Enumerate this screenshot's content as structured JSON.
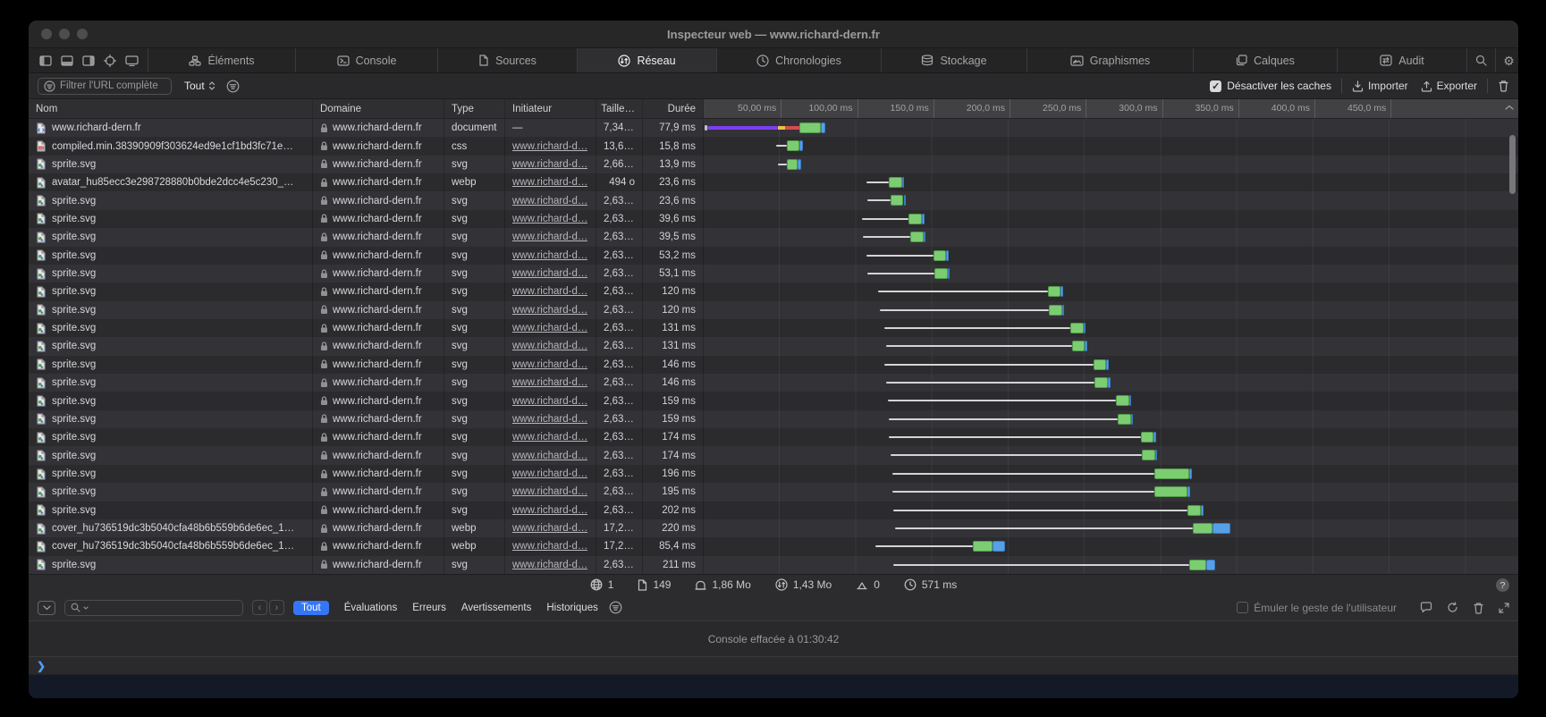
{
  "window": {
    "title": "Inspecteur web — www.richard-dern.fr"
  },
  "tabbar": {
    "dock_icons": [
      "dock-left-icon",
      "dock-bottom-icon",
      "dock-right-icon",
      "inspect-target-icon",
      "device-icon"
    ],
    "tabs": [
      {
        "label": "Éléments",
        "icon": "elements-icon",
        "selected": false
      },
      {
        "label": "Console",
        "icon": "console-icon",
        "selected": false
      },
      {
        "label": "Sources",
        "icon": "sources-icon",
        "selected": false
      },
      {
        "label": "Réseau",
        "icon": "network-icon",
        "selected": true
      },
      {
        "label": "Chronologies",
        "icon": "timelines-icon",
        "selected": false
      },
      {
        "label": "Stockage",
        "icon": "storage-icon",
        "selected": false
      },
      {
        "label": "Graphismes",
        "icon": "graphics-icon",
        "selected": false
      },
      {
        "label": "Calques",
        "icon": "layers-icon",
        "selected": false
      },
      {
        "label": "Audit",
        "icon": "audit-icon",
        "selected": false
      }
    ]
  },
  "nettools": {
    "filter_placeholder": "Filtrer l'URL complète",
    "scope_value": "Tout",
    "disable_caches_label": "Désactiver les caches",
    "disable_caches_checked": true,
    "import_label": "Importer",
    "export_label": "Exporter"
  },
  "table": {
    "columns": [
      "Nom",
      "Domaine",
      "Type",
      "Initiateur",
      "Taille…",
      "Durée"
    ]
  },
  "ruler": {
    "ticks": [
      {
        "label": "50,00 ms",
        "ms": 50
      },
      {
        "label": "100,00 ms",
        "ms": 100
      },
      {
        "label": "150,0 ms",
        "ms": 150
      },
      {
        "label": "200,0 ms",
        "ms": 200
      },
      {
        "label": "250,0 ms",
        "ms": 250
      },
      {
        "label": "300,0 ms",
        "ms": 300
      },
      {
        "label": "350,0 ms",
        "ms": 350
      },
      {
        "label": "400,0 ms",
        "ms": 400
      },
      {
        "label": "450,0 ms",
        "ms": 450
      }
    ]
  },
  "rows": [
    {
      "name": "www.richard-dern.fr",
      "icon": "html-file-icon",
      "domain": "www.richard-dern.fr",
      "type": "document",
      "initiator": "—",
      "link": false,
      "size": "7,34 ko",
      "duration": "77,9 ms",
      "segments": [
        [
          "gray",
          0,
          1.5
        ],
        [
          "purple",
          1.5,
          48
        ],
        [
          "yellow",
          48,
          53
        ],
        [
          "red",
          53,
          62
        ],
        [
          "green",
          62,
          76
        ],
        [
          "blue",
          76,
          79
        ]
      ]
    },
    {
      "name": "compiled.min.38390909f303624ed9e1cf1bd3fc71e…",
      "icon": "css-file-icon",
      "domain": "www.richard-dern.fr",
      "type": "css",
      "initiator": "www.richard-d…",
      "link": true,
      "size": "13,68…",
      "duration": "15,8 ms",
      "segments": [
        [
          "line",
          47,
          54
        ],
        [
          "green",
          54,
          62
        ],
        [
          "blue",
          62,
          64.5
        ]
      ]
    },
    {
      "name": "sprite.svg",
      "icon": "svg-file-icon",
      "domain": "www.richard-dern.fr",
      "type": "svg",
      "initiator": "www.richard-d…",
      "link": true,
      "size": "2,66 …",
      "duration": "13,9 ms",
      "segments": [
        [
          "line",
          48,
          54
        ],
        [
          "green",
          54,
          61
        ],
        [
          "blue",
          61,
          63.5
        ]
      ]
    },
    {
      "name": "avatar_hu85ecc3e298728880b0bde2dcc4e5c230_…",
      "icon": "webp-file-icon",
      "domain": "www.richard-dern.fr",
      "type": "webp",
      "initiator": "www.richard-d…",
      "link": true,
      "size": "494 o",
      "duration": "23,6 ms",
      "segments": [
        [
          "line",
          106,
          121
        ],
        [
          "green",
          121,
          129.5
        ],
        [
          "blue",
          129.5,
          131
        ]
      ]
    },
    {
      "name": "sprite.svg",
      "icon": "svg-file-icon",
      "domain": "www.richard-dern.fr",
      "type": "svg",
      "initiator": "www.richard-d…",
      "link": true,
      "size": "2,63 …",
      "duration": "23,6 ms",
      "segments": [
        [
          "line",
          107,
          122
        ],
        [
          "green",
          122,
          130.5
        ],
        [
          "blue",
          130.5,
          132
        ]
      ]
    },
    {
      "name": "sprite.svg",
      "icon": "svg-file-icon",
      "domain": "www.richard-dern.fr",
      "type": "svg",
      "initiator": "www.richard-d…",
      "link": true,
      "size": "2,63 …",
      "duration": "39,6 ms",
      "segments": [
        [
          "line",
          103,
          134
        ],
        [
          "green",
          134,
          142.5
        ],
        [
          "blue",
          142.5,
          144
        ]
      ]
    },
    {
      "name": "sprite.svg",
      "icon": "svg-file-icon",
      "domain": "www.richard-dern.fr",
      "type": "svg",
      "initiator": "www.richard-d…",
      "link": true,
      "size": "2,63 …",
      "duration": "39,5 ms",
      "segments": [
        [
          "line",
          104,
          135
        ],
        [
          "green",
          135,
          143.5
        ],
        [
          "blue",
          143.5,
          145
        ]
      ]
    },
    {
      "name": "sprite.svg",
      "icon": "svg-file-icon",
      "domain": "www.richard-dern.fr",
      "type": "svg",
      "initiator": "www.richard-d…",
      "link": true,
      "size": "2,63 …",
      "duration": "53,2 ms",
      "segments": [
        [
          "line",
          106,
          150
        ],
        [
          "green",
          150,
          158.5
        ],
        [
          "blue",
          158.5,
          160
        ]
      ]
    },
    {
      "name": "sprite.svg",
      "icon": "svg-file-icon",
      "domain": "www.richard-dern.fr",
      "type": "svg",
      "initiator": "www.richard-d…",
      "link": true,
      "size": "2,63 …",
      "duration": "53,1 ms",
      "segments": [
        [
          "line",
          107,
          151
        ],
        [
          "green",
          151,
          159.5
        ],
        [
          "blue",
          159.5,
          161
        ]
      ]
    },
    {
      "name": "sprite.svg",
      "icon": "svg-file-icon",
      "domain": "www.richard-dern.fr",
      "type": "svg",
      "initiator": "www.richard-d…",
      "link": true,
      "size": "2,63 …",
      "duration": "120 ms",
      "segments": [
        [
          "line",
          114,
          225
        ],
        [
          "green",
          225,
          233.5
        ],
        [
          "blue",
          233.5,
          235
        ]
      ]
    },
    {
      "name": "sprite.svg",
      "icon": "svg-file-icon",
      "domain": "www.richard-dern.fr",
      "type": "svg",
      "initiator": "www.richard-d…",
      "link": true,
      "size": "2,63 …",
      "duration": "120 ms",
      "segments": [
        [
          "line",
          115,
          226
        ],
        [
          "green",
          226,
          234.5
        ],
        [
          "blue",
          234.5,
          236
        ]
      ]
    },
    {
      "name": "sprite.svg",
      "icon": "svg-file-icon",
      "domain": "www.richard-dern.fr",
      "type": "svg",
      "initiator": "www.richard-d…",
      "link": true,
      "size": "2,63 …",
      "duration": "131 ms",
      "segments": [
        [
          "line",
          118,
          240
        ],
        [
          "green",
          240,
          248.5
        ],
        [
          "blue",
          248.5,
          250
        ]
      ]
    },
    {
      "name": "sprite.svg",
      "icon": "svg-file-icon",
      "domain": "www.richard-dern.fr",
      "type": "svg",
      "initiator": "www.richard-d…",
      "link": true,
      "size": "2,63 …",
      "duration": "131 ms",
      "segments": [
        [
          "line",
          119,
          241
        ],
        [
          "green",
          241,
          249.5
        ],
        [
          "blue",
          249.5,
          251
        ]
      ]
    },
    {
      "name": "sprite.svg",
      "icon": "svg-file-icon",
      "domain": "www.richard-dern.fr",
      "type": "svg",
      "initiator": "www.richard-d…",
      "link": true,
      "size": "2,63 …",
      "duration": "146 ms",
      "segments": [
        [
          "line",
          118,
          255
        ],
        [
          "green",
          255,
          263.5
        ],
        [
          "blue",
          263.5,
          265
        ]
      ]
    },
    {
      "name": "sprite.svg",
      "icon": "svg-file-icon",
      "domain": "www.richard-dern.fr",
      "type": "svg",
      "initiator": "www.richard-d…",
      "link": true,
      "size": "2,63 …",
      "duration": "146 ms",
      "segments": [
        [
          "line",
          119,
          256
        ],
        [
          "green",
          256,
          264.5
        ],
        [
          "blue",
          264.5,
          266
        ]
      ]
    },
    {
      "name": "sprite.svg",
      "icon": "svg-file-icon",
      "domain": "www.richard-dern.fr",
      "type": "svg",
      "initiator": "www.richard-d…",
      "link": true,
      "size": "2,63 …",
      "duration": "159 ms",
      "segments": [
        [
          "line",
          120,
          270
        ],
        [
          "green",
          270,
          278.5
        ],
        [
          "blue",
          278.5,
          280
        ]
      ]
    },
    {
      "name": "sprite.svg",
      "icon": "svg-file-icon",
      "domain": "www.richard-dern.fr",
      "type": "svg",
      "initiator": "www.richard-d…",
      "link": true,
      "size": "2,63 …",
      "duration": "159 ms",
      "segments": [
        [
          "line",
          121,
          271
        ],
        [
          "green",
          271,
          279.5
        ],
        [
          "blue",
          279.5,
          281
        ]
      ]
    },
    {
      "name": "sprite.svg",
      "icon": "svg-file-icon",
      "domain": "www.richard-dern.fr",
      "type": "svg",
      "initiator": "www.richard-d…",
      "link": true,
      "size": "2,63 …",
      "duration": "174 ms",
      "segments": [
        [
          "line",
          121,
          286
        ],
        [
          "green",
          286,
          294.5
        ],
        [
          "blue",
          294.5,
          296
        ]
      ]
    },
    {
      "name": "sprite.svg",
      "icon": "svg-file-icon",
      "domain": "www.richard-dern.fr",
      "type": "svg",
      "initiator": "www.richard-d…",
      "link": true,
      "size": "2,63 …",
      "duration": "174 ms",
      "segments": [
        [
          "line",
          122,
          287
        ],
        [
          "green",
          287,
          295.5
        ],
        [
          "blue",
          295.5,
          297
        ]
      ]
    },
    {
      "name": "sprite.svg",
      "icon": "svg-file-icon",
      "domain": "www.richard-dern.fr",
      "type": "svg",
      "initiator": "www.richard-d…",
      "link": true,
      "size": "2,63 …",
      "duration": "196 ms",
      "segments": [
        [
          "line",
          123,
          295
        ],
        [
          "green",
          295,
          318
        ],
        [
          "blue",
          318,
          319.5
        ]
      ]
    },
    {
      "name": "sprite.svg",
      "icon": "svg-file-icon",
      "domain": "www.richard-dern.fr",
      "type": "svg",
      "initiator": "www.richard-d…",
      "link": true,
      "size": "2,63 …",
      "duration": "195 ms",
      "segments": [
        [
          "line",
          123,
          295
        ],
        [
          "green",
          295,
          317
        ],
        [
          "blue",
          317,
          318.5
        ]
      ]
    },
    {
      "name": "sprite.svg",
      "icon": "svg-file-icon",
      "domain": "www.richard-dern.fr",
      "type": "svg",
      "initiator": "www.richard-d…",
      "link": true,
      "size": "2,63 …",
      "duration": "202 ms",
      "segments": [
        [
          "line",
          124,
          317
        ],
        [
          "green",
          317,
          325.5
        ],
        [
          "blue",
          325.5,
          327
        ]
      ]
    },
    {
      "name": "cover_hu736519dc3b5040cfa48b6b559b6de6ec_1…",
      "icon": "webp-file-icon",
      "domain": "www.richard-dern.fr",
      "type": "webp",
      "initiator": "www.richard-d…",
      "link": true,
      "size": "17,20…",
      "duration": "220 ms",
      "segments": [
        [
          "line",
          125,
          320
        ],
        [
          "green",
          320,
          333
        ],
        [
          "blue",
          333,
          345
        ]
      ]
    },
    {
      "name": "cover_hu736519dc3b5040cfa48b6b559b6de6ec_1…",
      "icon": "webp-file-icon",
      "domain": "www.richard-dern.fr",
      "type": "webp",
      "initiator": "www.richard-d…",
      "link": true,
      "size": "17,24…",
      "duration": "85,4 ms",
      "segments": [
        [
          "line",
          112,
          176
        ],
        [
          "green",
          176,
          189
        ],
        [
          "blue",
          189,
          197
        ]
      ]
    },
    {
      "name": "sprite.svg",
      "icon": "svg-file-icon",
      "domain": "www.richard-dern.fr",
      "type": "svg",
      "initiator": "www.richard-d…",
      "link": true,
      "size": "2,63 …",
      "duration": "211 ms",
      "segments": [
        [
          "line",
          124,
          318
        ],
        [
          "green",
          318,
          329
        ],
        [
          "blue",
          329,
          335
        ]
      ]
    }
  ],
  "statusbar": {
    "items": [
      {
        "icon": "globe-icon",
        "value": "1"
      },
      {
        "icon": "document-icon",
        "value": "149"
      },
      {
        "icon": "resources-icon",
        "value": "1,86 Mo"
      },
      {
        "icon": "transfer-icon",
        "value": "1,43 Mo"
      },
      {
        "icon": "cloud-up-icon",
        "value": "0"
      },
      {
        "icon": "clock-icon",
        "value": "571 ms"
      }
    ],
    "help": "?"
  },
  "console": {
    "scopes": [
      "Tout",
      "Évaluations",
      "Erreurs",
      "Avertissements",
      "Historiques"
    ],
    "selected_scope": "Tout",
    "emulate_label": "Émuler le geste de l'utilisateur",
    "emulate_checked": false,
    "cleared_message": "Console effacée à 01:30:42",
    "prompt_glyph": "❯"
  }
}
